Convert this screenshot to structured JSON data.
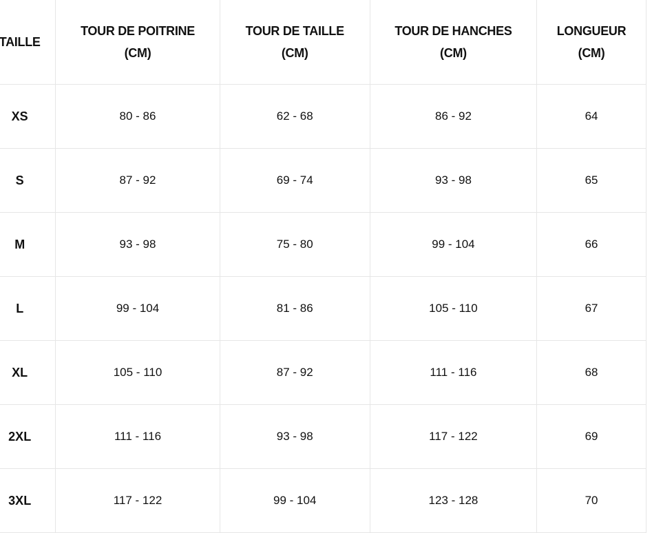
{
  "table": {
    "headers": [
      [
        "TAILLE",
        ""
      ],
      [
        "TOUR DE POITRINE",
        "(CM)"
      ],
      [
        "TOUR DE TAILLE",
        "(CM)"
      ],
      [
        "TOUR DE HANCHES",
        "(CM)"
      ],
      [
        "LONGUEUR",
        "(CM)"
      ]
    ],
    "rows": [
      [
        "XS",
        "80 - 86",
        "62 - 68",
        "86 - 92",
        "64"
      ],
      [
        "S",
        "87 - 92",
        "69 - 74",
        "93 - 98",
        "65"
      ],
      [
        "M",
        "93 - 98",
        "75 - 80",
        "99 - 104",
        "66"
      ],
      [
        "L",
        "99 - 104",
        "81 - 86",
        "105 - 110",
        "67"
      ],
      [
        "XL",
        "105 - 110",
        "87 - 92",
        "111 - 116",
        "68"
      ],
      [
        "2XL",
        "111 - 116",
        "93 - 98",
        "117 - 122",
        "69"
      ],
      [
        "3XL",
        "117 - 122",
        "99 - 104",
        "123 - 128",
        "70"
      ]
    ]
  }
}
